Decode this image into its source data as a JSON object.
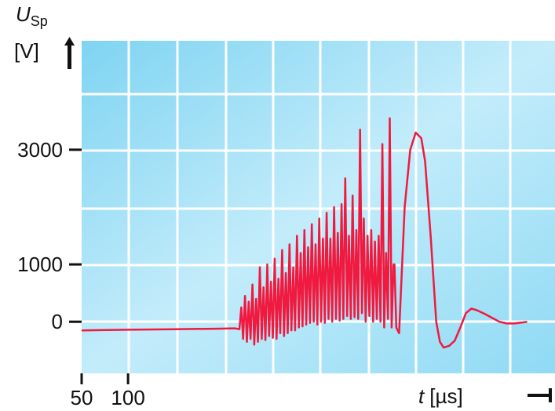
{
  "chart_data": {
    "type": "line",
    "ylabel": {
      "symbol": "U",
      "subscript": "Sp",
      "unit": "[V]"
    },
    "xlabel": {
      "symbol": "t",
      "unit": "[µs]"
    },
    "y_ticks": [
      {
        "value": 0,
        "label": "0"
      },
      {
        "value": 1000,
        "label": "1000"
      },
      {
        "value": 3000,
        "label": "3000"
      }
    ],
    "x_ticks": [
      {
        "value": 50,
        "label": "50"
      },
      {
        "value": 100,
        "label": "100"
      }
    ],
    "ylim": [
      -900,
      4900
    ],
    "xlim": [
      50,
      560
    ],
    "grid": true,
    "colors": {
      "plot_bg_light": "#c3ecfa",
      "plot_bg_dark": "#7fd4f2",
      "grid": "#ffffff",
      "trace": "#f0193f"
    },
    "series": [
      {
        "points": [
          [
            50,
            -150
          ],
          [
            100,
            -140
          ],
          [
            150,
            -130
          ],
          [
            200,
            -120
          ],
          [
            215,
            -115
          ],
          [
            220,
            -130
          ],
          [
            222,
            250
          ],
          [
            224,
            -300
          ],
          [
            226,
            450
          ],
          [
            228,
            -350
          ],
          [
            230,
            350
          ],
          [
            232,
            -300
          ],
          [
            234,
            650
          ],
          [
            236,
            -400
          ],
          [
            238,
            400
          ],
          [
            240,
            -350
          ],
          [
            242,
            950
          ],
          [
            244,
            -300
          ],
          [
            246,
            600
          ],
          [
            248,
            -320
          ],
          [
            250,
            1000
          ],
          [
            252,
            -250
          ],
          [
            254,
            700
          ],
          [
            256,
            -280
          ],
          [
            258,
            1100
          ],
          [
            260,
            -300
          ],
          [
            262,
            750
          ],
          [
            264,
            -200
          ],
          [
            266,
            1250
          ],
          [
            268,
            -250
          ],
          [
            270,
            850
          ],
          [
            272,
            -200
          ],
          [
            274,
            1350
          ],
          [
            276,
            -150
          ],
          [
            278,
            950
          ],
          [
            280,
            -150
          ],
          [
            282,
            1500
          ],
          [
            284,
            -100
          ],
          [
            286,
            1200
          ],
          [
            288,
            -80
          ],
          [
            290,
            1600
          ],
          [
            292,
            -50
          ],
          [
            294,
            1300
          ],
          [
            296,
            -20
          ],
          [
            298,
            1700
          ],
          [
            300,
            0
          ],
          [
            302,
            1350
          ],
          [
            304,
            -50
          ],
          [
            306,
            1800
          ],
          [
            308,
            0
          ],
          [
            310,
            1450
          ],
          [
            312,
            -20
          ],
          [
            314,
            1900
          ],
          [
            316,
            50
          ],
          [
            318,
            1450
          ],
          [
            320,
            0
          ],
          [
            322,
            2000
          ],
          [
            324,
            50
          ],
          [
            326,
            1550
          ],
          [
            328,
            20
          ],
          [
            330,
            2050
          ],
          [
            332,
            50
          ],
          [
            334,
            2500
          ],
          [
            336,
            100
          ],
          [
            338,
            1500
          ],
          [
            340,
            50
          ],
          [
            342,
            2200
          ],
          [
            344,
            80
          ],
          [
            346,
            1600
          ],
          [
            348,
            50
          ],
          [
            350,
            3350
          ],
          [
            352,
            150
          ],
          [
            354,
            1800
          ],
          [
            356,
            0
          ],
          [
            358,
            1500
          ],
          [
            360,
            100
          ],
          [
            362,
            1600
          ],
          [
            364,
            0
          ],
          [
            366,
            1400
          ],
          [
            368,
            50
          ],
          [
            370,
            1500
          ],
          [
            372,
            0
          ],
          [
            374,
            3100
          ],
          [
            376,
            -100
          ],
          [
            378,
            1200
          ],
          [
            380,
            50
          ],
          [
            382,
            3550
          ],
          [
            384,
            -100
          ],
          [
            386,
            1000
          ],
          [
            387,
            1000
          ],
          [
            389,
            -100
          ],
          [
            392,
            -200
          ],
          [
            398,
            2000
          ],
          [
            404,
            3000
          ],
          [
            410,
            3300
          ],
          [
            416,
            3200
          ],
          [
            420,
            2800
          ],
          [
            426,
            1500
          ],
          [
            432,
            0
          ],
          [
            436,
            -350
          ],
          [
            440,
            -450
          ],
          [
            446,
            -420
          ],
          [
            452,
            -330
          ],
          [
            458,
            -100
          ],
          [
            464,
            150
          ],
          [
            470,
            230
          ],
          [
            476,
            200
          ],
          [
            484,
            140
          ],
          [
            492,
            70
          ],
          [
            500,
            0
          ],
          [
            508,
            -30
          ],
          [
            516,
            -30
          ],
          [
            524,
            -15
          ],
          [
            530,
            0
          ]
        ]
      }
    ]
  }
}
